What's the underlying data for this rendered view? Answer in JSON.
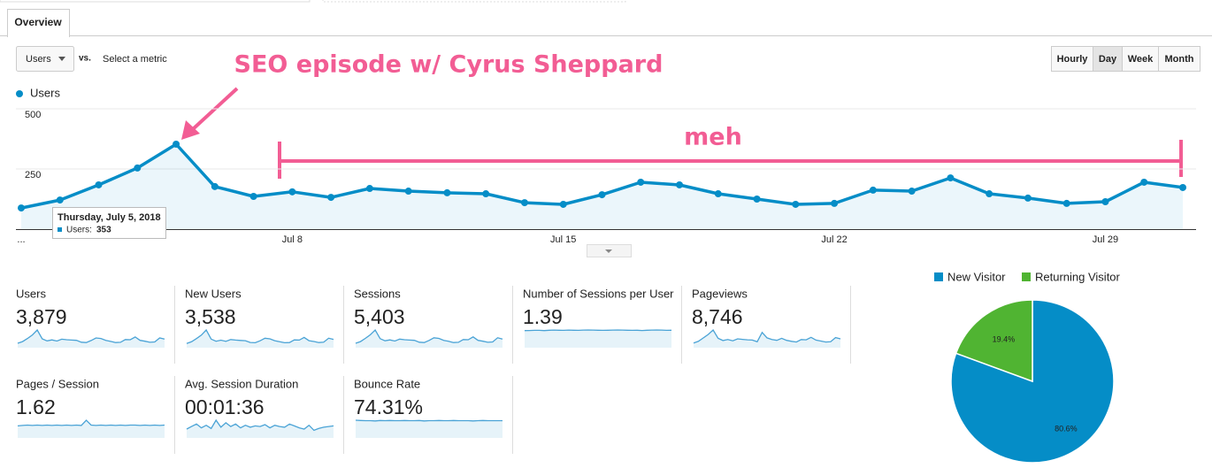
{
  "tabs": [
    "Overview"
  ],
  "controls": {
    "metric": "Users",
    "vs": "vs.",
    "compare": "Select a metric",
    "granularity": [
      "Hourly",
      "Day",
      "Week",
      "Month"
    ],
    "selected": 1
  },
  "annotations": {
    "peak": "SEO episode w/ Cyrus Sheppard",
    "flat": "meh"
  },
  "tooltip": {
    "date": "Thursday, July 5, 2018",
    "label": "Users:"
  },
  "chart_data": [
    {
      "type": "line",
      "categories": [
        "...",
        null,
        null,
        null,
        null,
        null,
        null,
        "Jul 8",
        null,
        null,
        null,
        null,
        null,
        null,
        "Jul 15",
        null,
        null,
        null,
        null,
        null,
        null,
        "Jul 22",
        null,
        null,
        null,
        null,
        null,
        null,
        "Jul 29",
        null,
        null
      ],
      "series": [
        {
          "name": "Users",
          "color": "#058dc7",
          "values": [
            88,
            121,
            184,
            254,
            353,
            177,
            136,
            155,
            132,
            169,
            158,
            151,
            147,
            110,
            103,
            143,
            195,
            184,
            147,
            125,
            103,
            107,
            162,
            158,
            213,
            147,
            129,
            107,
            114,
            195,
            173
          ]
        }
      ],
      "ylim": [
        0,
        500
      ],
      "yticks": [
        250,
        500
      ],
      "grid": true,
      "legend": "top-left"
    },
    {
      "type": "pie",
      "legend": "top",
      "series": [
        {
          "name": "New Visitor",
          "color": "#058dc7",
          "values": [
            80.6
          ],
          "value_labels": [
            "80.6%"
          ]
        },
        {
          "name": "Returning Visitor",
          "color": "#50b432",
          "values": [
            19.4
          ],
          "value_labels": [
            "19.4%"
          ]
        }
      ]
    }
  ],
  "metrics": [
    {
      "name": "Users",
      "value": "3,879"
    },
    {
      "name": "New Users",
      "value": "3,538",
      "trend": [
        80,
        110,
        170,
        235,
        330,
        160,
        120,
        140,
        118,
        152,
        142,
        135,
        130,
        98,
        92,
        128,
        176,
        165,
        130,
        112,
        92,
        96,
        145,
        142,
        192,
        130,
        115,
        96,
        102,
        176,
        155
      ]
    },
    {
      "name": "Sessions",
      "value": "5,403",
      "trend": [
        120,
        165,
        255,
        350,
        480,
        245,
        188,
        212,
        180,
        232,
        216,
        206,
        200,
        150,
        140,
        196,
        268,
        252,
        200,
        172,
        140,
        146,
        222,
        216,
        292,
        200,
        176,
        146,
        156,
        268,
        236
      ]
    },
    {
      "name": "Number of Sessions per User",
      "value": "1.39",
      "trend": [
        1.36,
        1.37,
        1.38,
        1.38,
        1.36,
        1.39,
        1.4,
        1.39,
        1.38,
        1.4,
        1.39,
        1.38,
        1.4,
        1.41,
        1.4,
        1.39,
        1.38,
        1.39,
        1.4,
        1.41,
        1.4,
        1.39,
        1.38,
        1.39,
        1.37,
        1.39,
        1.4,
        1.41,
        1.4,
        1.38,
        1.39
      ]
    },
    {
      "name": "Pageviews",
      "value": "8,746",
      "trend": [
        190,
        260,
        400,
        540,
        720,
        380,
        290,
        330,
        280,
        360,
        340,
        320,
        310,
        240,
        620,
        400,
        330,
        300,
        380,
        300,
        260,
        230,
        330,
        320,
        420,
        310,
        270,
        230,
        240,
        410,
        360
      ]
    },
    {
      "name": "Pages / Session",
      "value": "1.62",
      "trend": [
        1.5,
        1.55,
        1.6,
        1.55,
        1.6,
        1.55,
        1.6,
        1.55,
        1.6,
        1.55,
        1.6,
        1.55,
        1.6,
        1.55,
        2.2,
        1.6,
        1.55,
        1.6,
        1.55,
        1.6,
        1.55,
        1.6,
        1.55,
        1.6,
        1.6,
        1.55,
        1.6,
        1.55,
        1.6,
        1.55,
        1.6
      ]
    },
    {
      "name": "Avg. Session Duration",
      "value": "00:01:36",
      "trend": [
        70,
        90,
        110,
        80,
        100,
        75,
        140,
        85,
        120,
        90,
        110,
        80,
        100,
        85,
        95,
        90,
        105,
        80,
        100,
        90,
        85,
        110,
        95,
        80,
        70,
        100,
        60,
        75,
        85,
        90,
        95
      ]
    },
    {
      "name": "Bounce Rate",
      "value": "74.31%",
      "trend": [
        76,
        75,
        74,
        74,
        73,
        75,
        74,
        75,
        74,
        74,
        75,
        74,
        74,
        75,
        73,
        74,
        74,
        75,
        74,
        74,
        75,
        74,
        74,
        74,
        73,
        74,
        75,
        74,
        74,
        74,
        74
      ]
    }
  ]
}
